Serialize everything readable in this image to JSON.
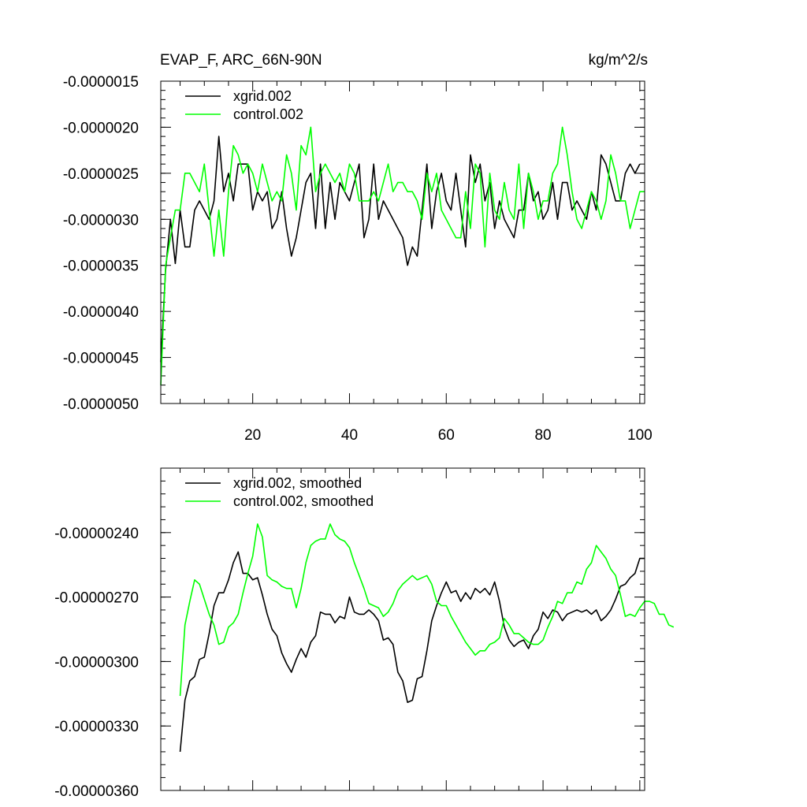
{
  "chart_data": [
    {
      "type": "line",
      "title": "EVAP_F, ARC_66N-90N",
      "units_label": "kg/m^2/s",
      "xlim": [
        1,
        101
      ],
      "ylim": [
        -5e-06,
        -1.5e-06
      ],
      "x_ticks": [
        20,
        40,
        60,
        80,
        100
      ],
      "x_tick_labels": [
        "20",
        "40",
        "60",
        "80",
        "100"
      ],
      "y_ticks": [
        -1.5e-06,
        -2e-06,
        -2.5e-06,
        -3e-06,
        -3.5e-06,
        -4e-06,
        -4.5e-06,
        -5e-06
      ],
      "y_tick_labels": [
        "-0.0000015",
        "-0.0000020",
        "-0.0000025",
        "-0.0000030",
        "-0.0000035",
        "-0.0000040",
        "-0.0000045",
        "-0.0000050"
      ],
      "legend_position": "top-left",
      "series": [
        {
          "name": "xgrid.002",
          "color": "#000000",
          "x_start": 1,
          "x_step": 1,
          "values": [
            -4.55e-06,
            -3.55e-06,
            -3e-06,
            -3.48e-06,
            -2.9e-06,
            -3.3e-06,
            -3.3e-06,
            -2.9e-06,
            -2.8e-06,
            -2.9e-06,
            -3e-06,
            -2.8e-06,
            -2.1e-06,
            -2.7e-06,
            -2.5e-06,
            -2.8e-06,
            -2.4e-06,
            -2.4e-06,
            -2.4e-06,
            -2.9e-06,
            -2.7e-06,
            -2.8e-06,
            -2.7e-06,
            -3.1e-06,
            -3e-06,
            -2.7e-06,
            -3.1e-06,
            -3.4e-06,
            -3.2e-06,
            -2.9e-06,
            -2.6e-06,
            -2.5e-06,
            -3.1e-06,
            -2.4e-06,
            -3.1e-06,
            -2.6e-06,
            -3e-06,
            -2.6e-06,
            -2.7e-06,
            -2.8e-06,
            -2.6e-06,
            -2.4e-06,
            -3.2e-06,
            -3e-06,
            -2.4e-06,
            -3e-06,
            -2.8e-06,
            -2.9e-06,
            -3e-06,
            -3.1e-06,
            -3.2e-06,
            -3.5e-06,
            -3.3e-06,
            -3.4e-06,
            -2.9e-06,
            -2.4e-06,
            -3.1e-06,
            -2.7e-06,
            -2.5e-06,
            -2.8e-06,
            -2.9e-06,
            -2.5e-06,
            -2.9e-06,
            -3.3e-06,
            -2.3e-06,
            -2.6e-06,
            -2.4e-06,
            -2.8e-06,
            -2.6e-06,
            -3.1e-06,
            -2.8e-06,
            -3e-06,
            -3.1e-06,
            -3.2e-06,
            -2.9e-06,
            -2.9e-06,
            -2.5e-06,
            -2.8e-06,
            -2.7e-06,
            -3e-06,
            -2.9e-06,
            -2.6e-06,
            -3e-06,
            -2.6e-06,
            -2.6e-06,
            -2.9e-06,
            -2.8e-06,
            -2.9e-06,
            -3e-06,
            -2.7e-06,
            -2.9e-06,
            -2.3e-06,
            -2.4e-06,
            -2.6e-06,
            -2.8e-06,
            -2.8e-06,
            -2.5e-06,
            -2.4e-06,
            -2.5e-06,
            -2.4e-06
          ]
        },
        {
          "name": "control.002",
          "color": "#00ff00",
          "x_start": 1,
          "x_step": 1,
          "values": [
            -4.8e-06,
            -3.5e-06,
            -3.2e-06,
            -2.9e-06,
            -2.9e-06,
            -2.5e-06,
            -2.5e-06,
            -2.6e-06,
            -2.7e-06,
            -2.4e-06,
            -2.9e-06,
            -3.4e-06,
            -2.9e-06,
            -3.4e-06,
            -2.7e-06,
            -2.2e-06,
            -2.3e-06,
            -2.5e-06,
            -2.4e-06,
            -2.5e-06,
            -2.7e-06,
            -2.4e-06,
            -2.6e-06,
            -2.8e-06,
            -2.7e-06,
            -2.8e-06,
            -2.3e-06,
            -2.5e-06,
            -2.9e-06,
            -2.2e-06,
            -2.3e-06,
            -2e-06,
            -2.7e-06,
            -2.5e-06,
            -2.4e-06,
            -2.5e-06,
            -2.6e-06,
            -2.5e-06,
            -2.7e-06,
            -2.4e-06,
            -2.5e-06,
            -2.8e-06,
            -2.8e-06,
            -2.8e-06,
            -2.7e-06,
            -2.8e-06,
            -2.6e-06,
            -2.4e-06,
            -2.7e-06,
            -2.6e-06,
            -2.6e-06,
            -2.7e-06,
            -2.7e-06,
            -2.8e-06,
            -3e-06,
            -2.5e-06,
            -2.7e-06,
            -2.5e-06,
            -2.9e-06,
            -3e-06,
            -3.1e-06,
            -3.2e-06,
            -3.2e-06,
            -2.7e-06,
            -3.1e-06,
            -2.4e-06,
            -2.5e-06,
            -3.3e-06,
            -2.5e-06,
            -2.9e-06,
            -3e-06,
            -2.6e-06,
            -2.9e-06,
            -3e-06,
            -2.4e-06,
            -3.1e-06,
            -2.5e-06,
            -2.7e-06,
            -3e-06,
            -2.8e-06,
            -2.8e-06,
            -2.5e-06,
            -2.4e-06,
            -2e-06,
            -2.3e-06,
            -2.7e-06,
            -3e-06,
            -3.1e-06,
            -2.9e-06,
            -2.7e-06,
            -2.8e-06,
            -3e-06,
            -2.8e-06,
            -2.3e-06,
            -2.5e-06,
            -2.8e-06,
            -2.8e-06,
            -3.1e-06,
            -2.9e-06,
            -2.7e-06,
            -2.7e-06
          ]
        }
      ]
    },
    {
      "type": "line",
      "title": "",
      "xlim": [
        1,
        101
      ],
      "ylim": [
        -3.6e-06,
        -2.1e-06
      ],
      "x_ticks": [
        20,
        40,
        60,
        80,
        100
      ],
      "x_tick_labels": [],
      "y_ticks": [
        -2.4e-06,
        -2.7e-06,
        -3e-06,
        -3.3e-06,
        -3.6e-06
      ],
      "y_tick_labels": [
        "-0.00000240",
        "-0.00000270",
        "-0.00000300",
        "-0.00000330",
        "-0.00000360"
      ],
      "legend_position": "top-left",
      "series": [
        {
          "name": "xgrid.002, smoothed",
          "color": "#000000",
          "x_start": 5,
          "x_step": 1,
          "values": [
            -3.42e-06,
            -3.18e-06,
            -3.09e-06,
            -3.07e-06,
            -2.99e-06,
            -2.98e-06,
            -2.87e-06,
            -2.74e-06,
            -2.68e-06,
            -2.68e-06,
            -2.62e-06,
            -2.54e-06,
            -2.49e-06,
            -2.59e-06,
            -2.59e-06,
            -2.62e-06,
            -2.61e-06,
            -2.69e-06,
            -2.78e-06,
            -2.85e-06,
            -2.88e-06,
            -2.96e-06,
            -3.01e-06,
            -3.05e-06,
            -2.99e-06,
            -2.94e-06,
            -2.98e-06,
            -2.91e-06,
            -2.88e-06,
            -2.77e-06,
            -2.78e-06,
            -2.78e-06,
            -2.82e-06,
            -2.79e-06,
            -2.8e-06,
            -2.7e-06,
            -2.77e-06,
            -2.78e-06,
            -2.78e-06,
            -2.76e-06,
            -2.78e-06,
            -2.81e-06,
            -2.9e-06,
            -2.89e-06,
            -2.92e-06,
            -3.05e-06,
            -3.09e-06,
            -3.19e-06,
            -3.18e-06,
            -3.08e-06,
            -3.07e-06,
            -2.95e-06,
            -2.81e-06,
            -2.74e-06,
            -2.68e-06,
            -2.63e-06,
            -2.68e-06,
            -2.67e-06,
            -2.72e-06,
            -2.68e-06,
            -2.71e-06,
            -2.66e-06,
            -2.68e-06,
            -2.66e-06,
            -2.69e-06,
            -2.63e-06,
            -2.72e-06,
            -2.84e-06,
            -2.9e-06,
            -2.93e-06,
            -2.91e-06,
            -2.9e-06,
            -2.94e-06,
            -2.88e-06,
            -2.85e-06,
            -2.77e-06,
            -2.8e-06,
            -2.76e-06,
            -2.77e-06,
            -2.81e-06,
            -2.78e-06,
            -2.77e-06,
            -2.76e-06,
            -2.77e-06,
            -2.76e-06,
            -2.78e-06,
            -2.76e-06,
            -2.81e-06,
            -2.79e-06,
            -2.76e-06,
            -2.71e-06,
            -2.65e-06,
            -2.64e-06,
            -2.61e-06,
            -2.59e-06,
            -2.52e-06,
            -2.52e-06
          ]
        },
        {
          "name": "control.002, smoothed",
          "color": "#00ff00",
          "x_start": 5,
          "x_step": 1,
          "values": [
            -3.16e-06,
            -2.83e-06,
            -2.72e-06,
            -2.62e-06,
            -2.64e-06,
            -2.71e-06,
            -2.78e-06,
            -2.83e-06,
            -2.92e-06,
            -2.91e-06,
            -2.84e-06,
            -2.82e-06,
            -2.78e-06,
            -2.68e-06,
            -2.59e-06,
            -2.51e-06,
            -2.36e-06,
            -2.42e-06,
            -2.6e-06,
            -2.62e-06,
            -2.63e-06,
            -2.65e-06,
            -2.66e-06,
            -2.66e-06,
            -2.75e-06,
            -2.66e-06,
            -2.54e-06,
            -2.46e-06,
            -2.44e-06,
            -2.43e-06,
            -2.43e-06,
            -2.36e-06,
            -2.41e-06,
            -2.43e-06,
            -2.44e-06,
            -2.47e-06,
            -2.54e-06,
            -2.6e-06,
            -2.66e-06,
            -2.73e-06,
            -2.74e-06,
            -2.75e-06,
            -2.79e-06,
            -2.77e-06,
            -2.73e-06,
            -2.67e-06,
            -2.64e-06,
            -2.62e-06,
            -2.6e-06,
            -2.62e-06,
            -2.61e-06,
            -2.6e-06,
            -2.64e-06,
            -2.72e-06,
            -2.74e-06,
            -2.74e-06,
            -2.79e-06,
            -2.83e-06,
            -2.87e-06,
            -2.91e-06,
            -2.94e-06,
            -2.97e-06,
            -2.95e-06,
            -2.95e-06,
            -2.92e-06,
            -2.91e-06,
            -2.89e-06,
            -2.8e-06,
            -2.83e-06,
            -2.87e-06,
            -2.87e-06,
            -2.89e-06,
            -2.91e-06,
            -2.92e-06,
            -2.92e-06,
            -2.9e-06,
            -2.84e-06,
            -2.79e-06,
            -2.72e-06,
            -2.73e-06,
            -2.68e-06,
            -2.68e-06,
            -2.63e-06,
            -2.64e-06,
            -2.57e-06,
            -2.54e-06,
            -2.46e-06,
            -2.49e-06,
            -2.52e-06,
            -2.57e-06,
            -2.6e-06,
            -2.69e-06,
            -2.79e-06,
            -2.78e-06,
            -2.79e-06,
            -2.75e-06,
            -2.72e-06,
            -2.72e-06,
            -2.73e-06,
            -2.78e-06,
            -2.78e-06,
            -2.83e-06,
            -2.84e-06
          ]
        }
      ]
    }
  ]
}
